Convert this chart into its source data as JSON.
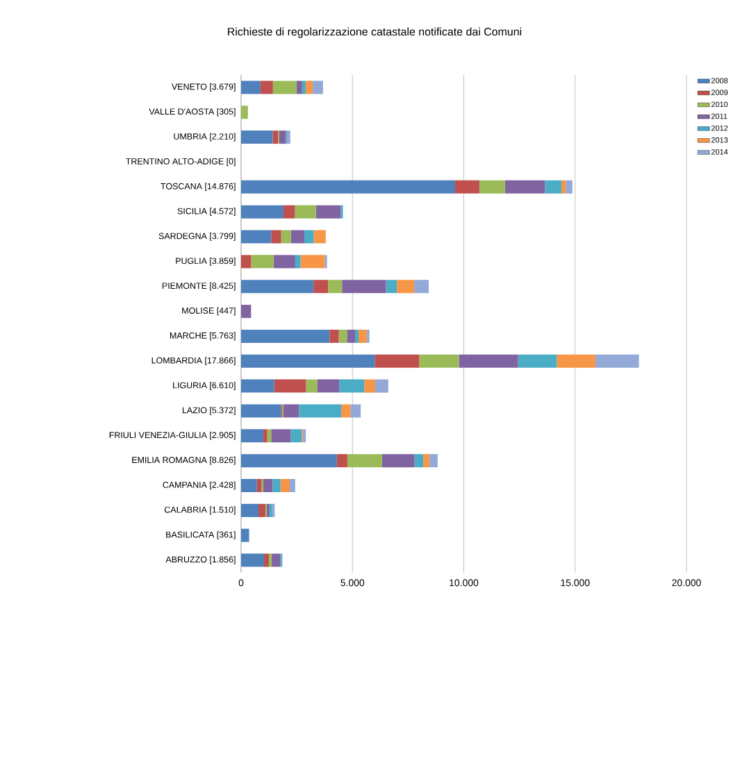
{
  "chart_data": {
    "type": "bar",
    "orientation": "horizontal",
    "stacked": true,
    "title": "Richieste di regolarizzazione catastale notificate dai Comuni",
    "categories": [
      "VENETO [3.679]",
      "VALLE D'AOSTA [305]",
      "UMBRIA [2.210]",
      "TRENTINO ALTO-ADIGE [0]",
      "TOSCANA [14.876]",
      "SICILIA [4.572]",
      "SARDEGNA [3.799]",
      "PUGLIA [3.859]",
      "PIEMONTE [8.425]",
      "MOLISE [447]",
      "MARCHE [5.763]",
      "LOMBARDIA [17.866]",
      "LIGURIA [6.610]",
      "LAZIO [5.372]",
      "FRIULI VENEZIA-GIULIA [2.905]",
      "EMILIA ROMAGNA [8.826]",
      "CAMPANIA [2.428]",
      "CALABRIA [1.510]",
      "BASILICATA [361]",
      "ABRUZZO [1.856]"
    ],
    "series": [
      {
        "name": "2008",
        "color": "#4f81bd",
        "values": [
          870,
          0,
          1420,
          0,
          9610,
          1900,
          1350,
          0,
          3250,
          0,
          3973,
          6000,
          1490,
          1800,
          1000,
          4301,
          710,
          780,
          361,
          1030
        ]
      },
      {
        "name": "2009",
        "color": "#c0504d",
        "values": [
          560,
          0,
          250,
          0,
          1090,
          520,
          450,
          450,
          655,
          0,
          415,
          2000,
          1425,
          50,
          175,
          470,
          210,
          310,
          0,
          220
        ]
      },
      {
        "name": "2010",
        "color": "#9bbb59",
        "values": [
          1060,
          305,
          40,
          0,
          1150,
          940,
          440,
          1010,
          625,
          0,
          365,
          1780,
          500,
          50,
          175,
          1560,
          80,
          60,
          0,
          125
        ]
      },
      {
        "name": "2011",
        "color": "#8064a2",
        "values": [
          250,
          0,
          300,
          0,
          1800,
          1112,
          600,
          970,
          1975,
          447,
          365,
          2660,
          990,
          700,
          880,
          1455,
          415,
          125,
          0,
          375
        ]
      },
      {
        "name": "2012",
        "color": "#4bacc6",
        "values": [
          160,
          0,
          50,
          0,
          730,
          100,
          420,
          240,
          490,
          0,
          155,
          1740,
          1125,
          1900,
          490,
          395,
          355,
          125,
          0,
          60
        ]
      },
      {
        "name": "2013",
        "color": "#f79646",
        "values": [
          310,
          0,
          0,
          0,
          200,
          0,
          539,
          1089,
          780,
          0,
          365,
          1730,
          490,
          415,
          50,
          280,
          415,
          0,
          0,
          0
        ]
      },
      {
        "name": "2014",
        "color": "#93a9d7",
        "values": [
          469,
          0,
          150,
          0,
          296,
          0,
          0,
          100,
          650,
          0,
          125,
          1956,
          590,
          457,
          135,
          365,
          243,
          110,
          0,
          46
        ]
      }
    ],
    "xlim": [
      0,
      20000
    ],
    "xticks": [
      0,
      {
        "value": 5000,
        "label": "5.000"
      },
      {
        "value": 10000,
        "label": "10.000"
      },
      {
        "value": 15000,
        "label": "15.000"
      },
      {
        "value": 20000,
        "label": "20.000"
      }
    ],
    "grid": "x",
    "legend": "right"
  }
}
